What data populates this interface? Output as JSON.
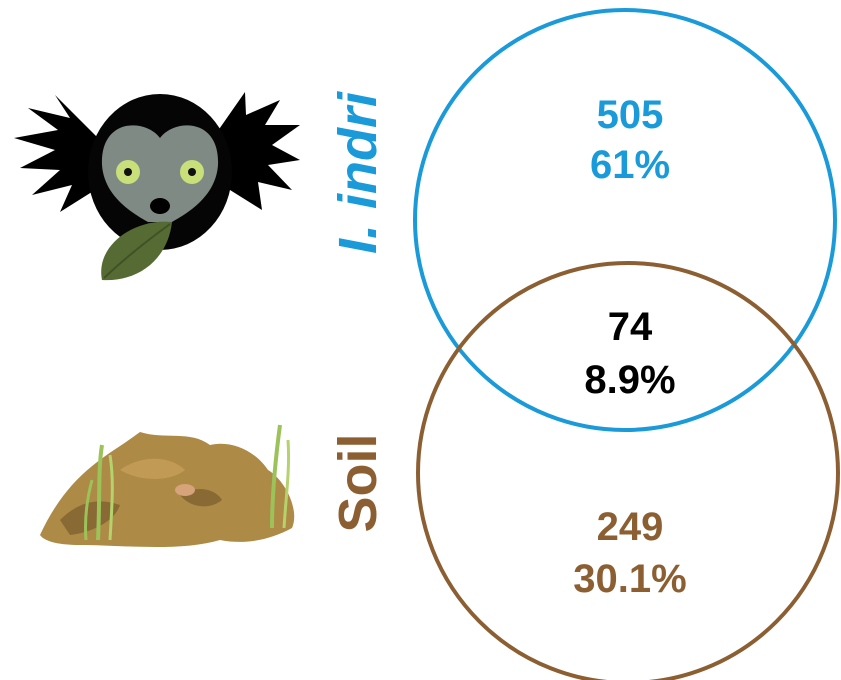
{
  "sets": {
    "indri": {
      "label": "I. indri",
      "count": "505",
      "percent": "61%",
      "color": "#1a9ad8"
    },
    "soil": {
      "label": "Soil",
      "count": "249",
      "percent": "30.1%",
      "color": "#8c5f33"
    },
    "overlap": {
      "count": "74",
      "percent": "8.9%",
      "color": "#000000"
    }
  },
  "icons": {
    "indri": "indri-lemur-icon",
    "soil": "soil-mound-icon"
  }
}
